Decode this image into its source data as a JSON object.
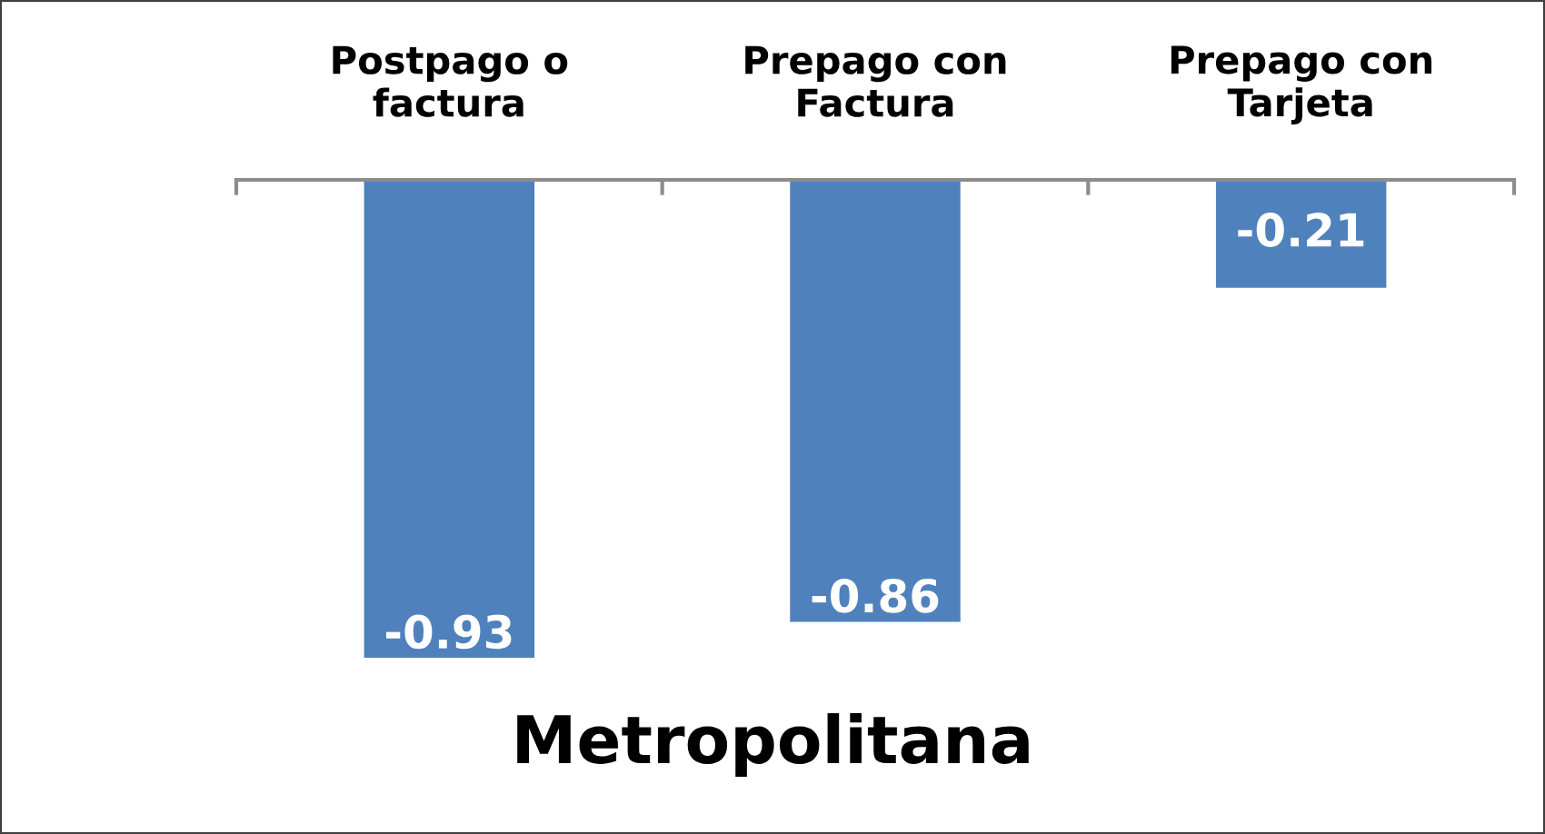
{
  "chart_data": {
    "type": "bar",
    "title": "Metropolitana",
    "categories": [
      "Postpago o\nfactura",
      "Prepago con\nFactura",
      "Prepago con\nTarjeta"
    ],
    "values": [
      -0.93,
      -0.86,
      -0.21
    ],
    "color": "#4f81bd",
    "data_labels": true,
    "grid": false,
    "legend": false
  }
}
